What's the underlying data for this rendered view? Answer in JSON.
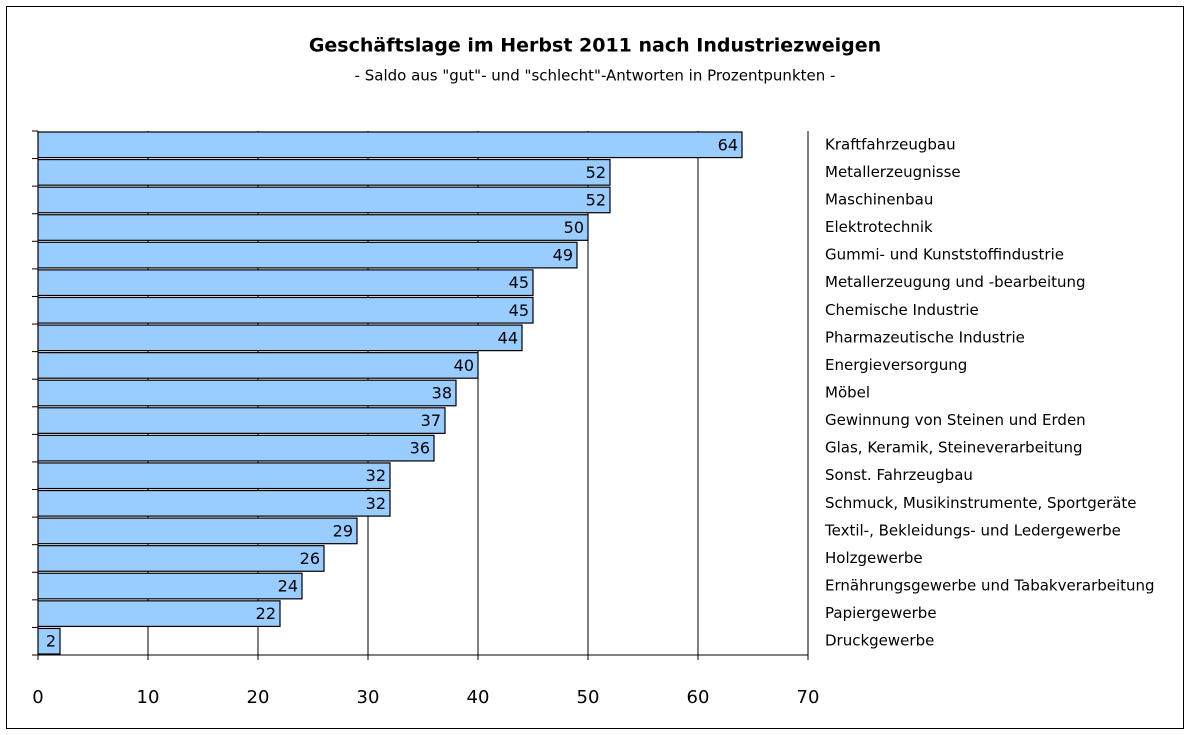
{
  "chart_data": {
    "type": "bar",
    "orientation": "horizontal",
    "title": "Geschäftslage im Herbst 2011 nach Industriezweigen",
    "subtitle": "- Saldo aus \"gut\"- und \"schlecht\"-Antworten in Prozentpunkten -",
    "categories": [
      "Kraftfahrzeugbau",
      "Metallerzeugnisse",
      "Maschinenbau",
      "Elektrotechnik",
      "Gummi- und Kunststoffindustrie",
      "Metallerzeugung und -bearbeitung",
      "Chemische Industrie",
      "Pharmazeutische Industrie",
      "Energieversorgung",
      "Möbel",
      "Gewinnung von Steinen und Erden",
      "Glas, Keramik, Steineverarbeitung",
      "Sonst. Fahrzeugbau",
      "Schmuck, Musikinstrumente, Sportgeräte",
      "Textil-, Bekleidungs- und Ledergewerbe",
      "Holzgewerbe",
      "Ernährungsgewerbe und Tabakverarbeitung",
      "Papiergewerbe",
      "Druckgewerbe"
    ],
    "values": [
      64,
      52,
      52,
      50,
      49,
      45,
      45,
      44,
      40,
      38,
      37,
      36,
      32,
      32,
      29,
      26,
      24,
      22,
      2
    ],
    "color": "#99ccff",
    "xlim": [
      0,
      70
    ],
    "xticks": [
      0,
      10,
      20,
      30,
      40,
      50,
      60,
      70
    ],
    "grid": true
  }
}
